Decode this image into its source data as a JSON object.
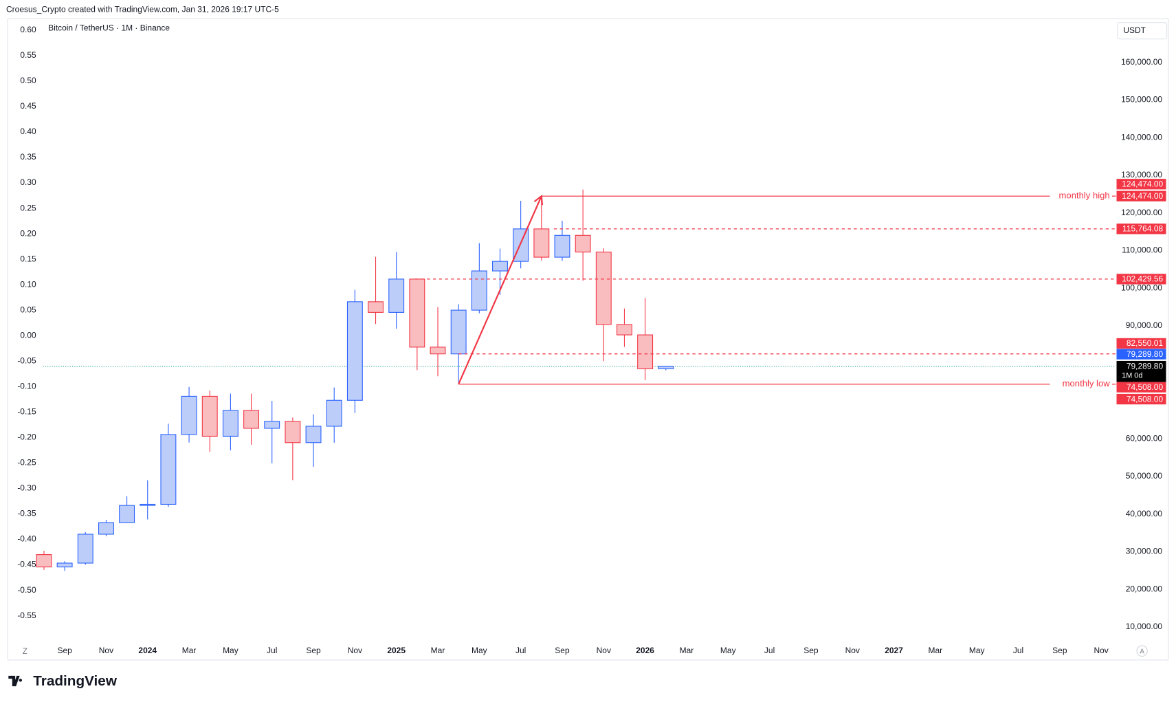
{
  "header": {
    "caption": "Croesus_Crypto created with TradingView.com, Jan 31, 2026 19:17 UTC-5",
    "logo": "TradingView"
  },
  "chart_data": {
    "type": "candlestick",
    "title": "Bitcoin / TetherUS · 1M · Binance",
    "currency": "USDT",
    "categories": [
      null,
      "Sep",
      null,
      "Nov",
      null,
      "2024",
      null,
      "Mar",
      null,
      "May",
      null,
      "Jul",
      null,
      "Sep",
      null,
      "Nov",
      null,
      "2025",
      null,
      "Mar",
      null,
      "May",
      null,
      "Jul",
      null,
      "Sep",
      null,
      "Nov",
      null,
      "2026",
      null,
      "Mar",
      null,
      "May",
      null,
      "Jul",
      null,
      "Sep",
      null,
      "Nov",
      null,
      "2027",
      null,
      "Mar",
      null,
      "May",
      null,
      "Jul",
      null,
      "Sep",
      null,
      "Nov",
      null
    ],
    "open": [
      29230,
      25940,
      26962,
      34639,
      37723,
      42283,
      42580,
      61130,
      71280,
      60672,
      67540,
      62772,
      64628,
      58974,
      63327,
      70215,
      96407,
      93576,
      102429,
      84350,
      82550,
      94172,
      104591,
      107135,
      115764,
      108246,
      114049,
      109608,
      90360,
      87600,
      78600,
      null,
      null,
      null,
      null,
      null,
      null,
      null,
      null,
      null,
      null,
      null,
      null,
      null,
      null,
      null,
      null,
      null,
      null,
      null,
      null,
      null,
      null
    ],
    "high": [
      30244,
      27483,
      35198,
      38450,
      44729,
      48969,
      64000,
      73777,
      72797,
      71979,
      71997,
      70079,
      65659,
      66498,
      73620,
      99588,
      108353,
      109588,
      102500,
      95000,
      95758,
      111980,
      110530,
      123218,
      124474,
      117900,
      126200,
      110600,
      94600,
      97450,
      79400,
      null,
      null,
      null,
      null,
      null,
      null,
      null,
      null,
      null,
      null,
      null,
      null,
      null,
      null,
      null,
      null,
      null,
      null,
      null,
      null,
      null,
      null
    ],
    "low": [
      25166,
      24901,
      26538,
      34097,
      37617,
      38555,
      41884,
      59005,
      56552,
      56937,
      58402,
      53485,
      49000,
      52550,
      58946,
      66835,
      90500,
      89256,
      78258,
      76606,
      74508,
      93346,
      98200,
      105271,
      107350,
      107255,
      102000,
      80600,
      84400,
      75550,
      78200,
      null,
      null,
      null,
      null,
      null,
      null,
      null,
      null,
      null,
      null,
      null,
      null,
      null,
      null,
      null,
      null,
      null,
      null,
      null,
      null,
      null,
      null
    ],
    "close": [
      25940,
      26962,
      34639,
      37723,
      42283,
      42580,
      61130,
      71280,
      60672,
      67540,
      62772,
      64628,
      58974,
      63327,
      70215,
      96407,
      93576,
      102429,
      84350,
      82550,
      94172,
      104591,
      107135,
      115764,
      108246,
      114049,
      109608,
      90360,
      87600,
      78600,
      79289.8,
      null,
      null,
      null,
      null,
      null,
      null,
      null,
      null,
      null,
      null,
      null,
      null,
      null,
      null,
      null,
      null,
      null,
      null,
      null,
      null,
      null,
      null
    ],
    "up_color": "#2962ff",
    "up_fill": "#bccdf9",
    "down_color": "#f23645",
    "down_fill": "#f9bcbf",
    "ylim": [
      6200,
      171000
    ],
    "yticks": [
      {
        "value": 10000,
        "label": "10,000.00"
      },
      {
        "value": 20000,
        "label": "20,000.00"
      },
      {
        "value": 30000,
        "label": "30,000.00"
      },
      {
        "value": 40000,
        "label": "40,000.00"
      },
      {
        "value": 50000,
        "label": "50,000.00"
      },
      {
        "value": 60000,
        "label": "60,000.00"
      },
      {
        "value": 90000,
        "label": "90,000.00"
      },
      {
        "value": 100000,
        "label": "100,000.00"
      },
      {
        "value": 110000,
        "label": "110,000.00"
      },
      {
        "value": 120000,
        "label": "120,000.00"
      },
      {
        "value": 130000,
        "label": "130,000.00"
      },
      {
        "value": 140000,
        "label": "140,000.00"
      },
      {
        "value": 150000,
        "label": "150,000.00"
      },
      {
        "value": 160000,
        "label": "160,000.00"
      }
    ],
    "y2lim": [
      -0.6,
      0.618
    ],
    "y2ticks": [
      {
        "value": 0.6,
        "label": "0.60"
      },
      {
        "value": 0.55,
        "label": "0.55"
      },
      {
        "value": 0.5,
        "label": "0.50"
      },
      {
        "value": 0.45,
        "label": "0.45"
      },
      {
        "value": 0.4,
        "label": "0.40"
      },
      {
        "value": 0.35,
        "label": "0.35"
      },
      {
        "value": 0.3,
        "label": "0.30"
      },
      {
        "value": 0.25,
        "label": "0.25"
      },
      {
        "value": 0.2,
        "label": "0.20"
      },
      {
        "value": 0.15,
        "label": "0.15"
      },
      {
        "value": 0.1,
        "label": "0.10"
      },
      {
        "value": 0.05,
        "label": "0.05"
      },
      {
        "value": 0,
        "label": "0.00"
      },
      {
        "value": -0.05,
        "label": "-0.05"
      },
      {
        "value": -0.1,
        "label": "-0.10"
      },
      {
        "value": -0.15,
        "label": "-0.15"
      },
      {
        "value": -0.2,
        "label": "-0.20"
      },
      {
        "value": -0.25,
        "label": "-0.25"
      },
      {
        "value": -0.3,
        "label": "-0.30"
      },
      {
        "value": -0.35,
        "label": "-0.35"
      },
      {
        "value": -0.4,
        "label": "-0.40"
      },
      {
        "value": -0.45,
        "label": "-0.45"
      },
      {
        "value": -0.5,
        "label": "-0.50"
      },
      {
        "value": -0.55,
        "label": "-0.55"
      }
    ],
    "levels": [
      {
        "value": 124474,
        "label": "124,474.00",
        "dashed": false,
        "annotation": "monthly high"
      },
      {
        "value": 115764.08,
        "label": "115,764.08",
        "dashed": true
      },
      {
        "value": 102429.56,
        "label": "102,429.56",
        "dashed": true
      },
      {
        "value": 82550.01,
        "label": "82,550.01",
        "dashed": true
      },
      {
        "value": 74508,
        "label": "74,508.00",
        "dashed": false,
        "annotation": "monthly low"
      }
    ],
    "level_color": "#f23645",
    "current": {
      "value": 79289.8,
      "label": "79,289.80",
      "countdown": "1M 0d",
      "color": "#2962ff",
      "line_color": "#089981"
    }
  }
}
